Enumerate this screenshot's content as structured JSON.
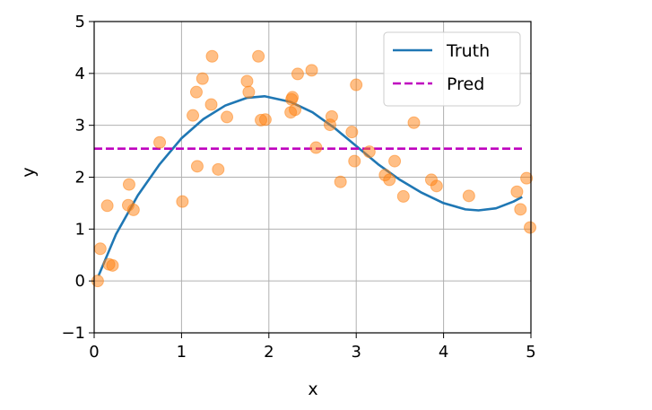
{
  "chart_data": {
    "type": "scatter",
    "title": "",
    "xlabel": "x",
    "ylabel": "y",
    "xlim": [
      0,
      5
    ],
    "ylim": [
      -1,
      5
    ],
    "xticks": [
      "0",
      "1",
      "2",
      "3",
      "4",
      "5"
    ],
    "yticks": [
      "−1",
      "0",
      "1",
      "2",
      "3",
      "4",
      "5"
    ],
    "grid": true,
    "legend_position": "top-right",
    "series": [
      {
        "name": "Truth",
        "kind": "line",
        "color": "#1f77b4",
        "x": [
          0.05,
          0.25,
          0.5,
          0.75,
          1.0,
          1.25,
          1.5,
          1.75,
          1.95,
          2.25,
          2.5,
          2.75,
          3.0,
          3.25,
          3.5,
          3.75,
          4.0,
          4.25,
          4.4,
          4.6,
          4.8,
          4.9
        ],
        "y": [
          0.1,
          0.9,
          1.65,
          2.25,
          2.75,
          3.12,
          3.38,
          3.53,
          3.56,
          3.45,
          3.25,
          2.95,
          2.6,
          2.25,
          1.95,
          1.7,
          1.5,
          1.38,
          1.36,
          1.4,
          1.53,
          1.62
        ]
      },
      {
        "name": "Pred",
        "kind": "dashed-line",
        "color": "#bf00bf",
        "x": [
          0.0,
          4.9
        ],
        "y": [
          2.55,
          2.55
        ]
      },
      {
        "name": "",
        "kind": "points",
        "color": "#ff7f0e",
        "x": [
          0.04,
          0.07,
          0.15,
          0.17,
          0.21,
          0.39,
          0.4,
          0.45,
          0.75,
          1.01,
          1.13,
          1.17,
          1.18,
          1.24,
          1.34,
          1.35,
          1.42,
          1.52,
          1.75,
          1.77,
          1.88,
          1.91,
          1.96,
          2.25,
          2.26,
          2.27,
          2.3,
          2.33,
          2.49,
          2.54,
          2.7,
          2.72,
          2.82,
          2.95,
          2.98,
          3.0,
          3.15,
          3.33,
          3.38,
          3.44,
          3.54,
          3.66,
          3.86,
          3.92,
          4.29,
          4.84,
          4.88,
          4.95,
          4.99
        ],
        "y": [
          0.0,
          0.62,
          1.45,
          0.32,
          0.3,
          1.46,
          1.86,
          1.37,
          2.67,
          1.53,
          3.19,
          3.64,
          2.21,
          3.9,
          3.4,
          4.33,
          2.15,
          3.16,
          3.85,
          3.64,
          4.33,
          3.1,
          3.11,
          3.25,
          3.5,
          3.54,
          3.3,
          3.99,
          4.06,
          2.57,
          3.01,
          3.17,
          1.91,
          2.87,
          2.31,
          3.78,
          2.49,
          2.04,
          1.95,
          2.31,
          1.63,
          3.05,
          1.95,
          1.83,
          1.64,
          1.72,
          1.38,
          1.98,
          1.03
        ]
      }
    ]
  }
}
